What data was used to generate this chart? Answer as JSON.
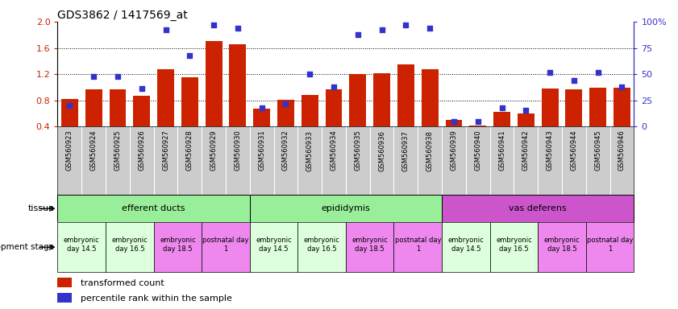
{
  "title": "GDS3862 / 1417569_at",
  "samples": [
    "GSM560923",
    "GSM560924",
    "GSM560925",
    "GSM560926",
    "GSM560927",
    "GSM560928",
    "GSM560929",
    "GSM560930",
    "GSM560931",
    "GSM560932",
    "GSM560933",
    "GSM560934",
    "GSM560935",
    "GSM560936",
    "GSM560937",
    "GSM560938",
    "GSM560939",
    "GSM560940",
    "GSM560941",
    "GSM560942",
    "GSM560943",
    "GSM560944",
    "GSM560945",
    "GSM560946"
  ],
  "transformed_count": [
    0.82,
    0.97,
    0.97,
    0.87,
    1.28,
    1.15,
    1.7,
    1.65,
    0.68,
    0.81,
    0.88,
    0.97,
    1.2,
    1.22,
    1.35,
    1.27,
    0.5,
    0.42,
    0.62,
    0.6,
    0.98,
    0.97,
    0.99,
    0.99
  ],
  "percentile_rank": [
    20,
    48,
    48,
    36,
    92,
    68,
    97,
    94,
    18,
    22,
    50,
    38,
    88,
    92,
    97,
    94,
    5,
    5,
    18,
    16,
    52,
    44,
    52,
    38
  ],
  "ylim_left": [
    0.4,
    2.0
  ],
  "ylim_right": [
    0,
    100
  ],
  "yticks_left": [
    0.4,
    0.8,
    1.2,
    1.6,
    2.0
  ],
  "yticks_right": [
    0,
    25,
    50,
    75,
    100
  ],
  "bar_color": "#cc2200",
  "dot_color": "#3333cc",
  "tissue_defs": [
    {
      "label": "efferent ducts",
      "start": 0,
      "end": 7,
      "color": "#99ee99"
    },
    {
      "label": "epididymis",
      "start": 8,
      "end": 15,
      "color": "#99ee99"
    },
    {
      "label": "vas deferens",
      "start": 16,
      "end": 23,
      "color": "#cc55cc"
    }
  ],
  "dev_stage_defs": [
    {
      "label": "embryonic\nday 14.5",
      "start": 0,
      "end": 1,
      "color": "#ddffdd"
    },
    {
      "label": "embryonic\nday 16.5",
      "start": 2,
      "end": 3,
      "color": "#ddffdd"
    },
    {
      "label": "embryonic\nday 18.5",
      "start": 4,
      "end": 5,
      "color": "#ee88ee"
    },
    {
      "label": "postnatal day\n1",
      "start": 6,
      "end": 7,
      "color": "#ee88ee"
    },
    {
      "label": "embryonic\nday 14.5",
      "start": 8,
      "end": 9,
      "color": "#ddffdd"
    },
    {
      "label": "embryonic\nday 16.5",
      "start": 10,
      "end": 11,
      "color": "#ddffdd"
    },
    {
      "label": "embryonic\nday 18.5",
      "start": 12,
      "end": 13,
      "color": "#ee88ee"
    },
    {
      "label": "postnatal day\n1",
      "start": 14,
      "end": 15,
      "color": "#ee88ee"
    },
    {
      "label": "embryonic\nday 14.5",
      "start": 16,
      "end": 17,
      "color": "#ddffdd"
    },
    {
      "label": "embryonic\nday 16.5",
      "start": 18,
      "end": 19,
      "color": "#ddffdd"
    },
    {
      "label": "embryonic\nday 18.5",
      "start": 20,
      "end": 21,
      "color": "#ee88ee"
    },
    {
      "label": "postnatal day\n1",
      "start": 22,
      "end": 23,
      "color": "#ee88ee"
    }
  ],
  "legend_items": [
    {
      "label": "transformed count",
      "color": "#cc2200"
    },
    {
      "label": "percentile rank within the sample",
      "color": "#3333cc"
    }
  ],
  "background_color": "#ffffff",
  "tick_label_color_left": "#cc2200",
  "tick_label_color_right": "#3333cc",
  "xlabel_bg": "#cccccc"
}
